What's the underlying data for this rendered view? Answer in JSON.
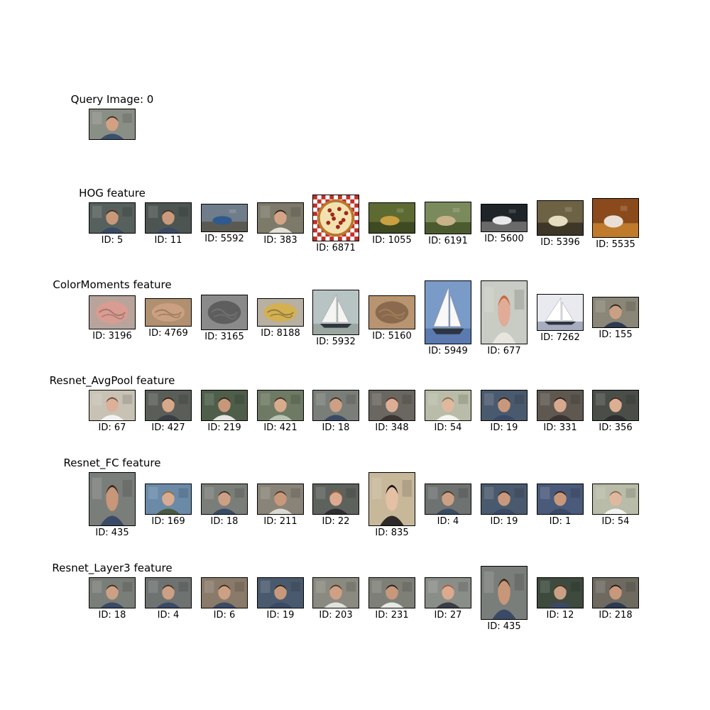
{
  "query": {
    "title": "Query Image: 0",
    "image": {
      "name": "query-face",
      "kind": "face",
      "bg": "#8a8f86",
      "skin": "#d2a184",
      "hair": "#3b2a1f",
      "shirt": "#3c4f6e"
    }
  },
  "features": [
    {
      "title": "HOG feature",
      "results": [
        {
          "caption": "ID: 5",
          "kind": "face",
          "bg": "#56605c",
          "skin": "#c8987a",
          "hair": "#3a2a20",
          "shirt": "#3a4a66"
        },
        {
          "caption": "ID: 11",
          "kind": "face",
          "bg": "#4d5552",
          "skin": "#c99a7b",
          "hair": "#3a2a20",
          "shirt": "#3a4a66"
        },
        {
          "caption": "ID: 5592",
          "kind": "scene",
          "bg": "#6f7c8a",
          "accent": "#2f5a8e",
          "ground": "#5a5a52"
        },
        {
          "caption": "ID: 383",
          "kind": "face",
          "bg": "#7d7a6a",
          "skin": "#d4a487",
          "hair": "#2a1e18",
          "shirt": "#e4e2d6"
        },
        {
          "caption": "ID: 6871",
          "kind": "pizza",
          "bg": "#c03028",
          "accent": "#a02818",
          "ground": "#f2e2b0"
        },
        {
          "caption": "ID: 1055",
          "kind": "scene",
          "bg": "#5d6a32",
          "accent": "#c9a040",
          "ground": "#3d4a22"
        },
        {
          "caption": "ID: 6191",
          "kind": "scene",
          "bg": "#7a8a5c",
          "accent": "#c8b28a",
          "ground": "#4c5a30"
        },
        {
          "caption": "ID: 5600",
          "kind": "scene",
          "bg": "#1f2428",
          "accent": "#e8e8ea",
          "ground": "#6a6a6a"
        },
        {
          "caption": "ID: 5396",
          "kind": "scene",
          "bg": "#6e6244",
          "accent": "#e6dcc0",
          "ground": "#3e3626"
        },
        {
          "caption": "ID: 5535",
          "kind": "scene",
          "bg": "#8a4a1c",
          "accent": "#e8e0d6",
          "ground": "#c07a2c"
        }
      ]
    },
    {
      "title": "ColorMoments feature",
      "results": [
        {
          "caption": "ID: 3196",
          "kind": "blob",
          "bg": "#b8a49a",
          "accent": "#d89c92",
          "ground": "#a87870"
        },
        {
          "caption": "ID: 4769",
          "kind": "blob",
          "bg": "#b09070",
          "accent": "#caa080",
          "ground": "#9a7a5e"
        },
        {
          "caption": "ID: 3165",
          "kind": "blob",
          "bg": "#8a8a8a",
          "accent": "#5e5e5e",
          "ground": "#707070"
        },
        {
          "caption": "ID: 8188",
          "kind": "blob",
          "bg": "#b8b0a0",
          "accent": "#d4b050",
          "ground": "#8a7a44"
        },
        {
          "caption": "ID: 5932",
          "kind": "boat",
          "bg": "#b8c4c4",
          "accent": "#f4f4f2",
          "ground": "#9aa6a0"
        },
        {
          "caption": "ID: 5160",
          "kind": "blob",
          "bg": "#b89470",
          "accent": "#8a6a4e",
          "ground": "#a07e5c"
        },
        {
          "caption": "ID: 5949",
          "kind": "boat",
          "bg": "#7a9ac8",
          "accent": "#f8f8f8",
          "ground": "#5a7ab0"
        },
        {
          "caption": "ID: 677",
          "kind": "face",
          "bg": "#c8ccc4",
          "skin": "#e0ac98",
          "hair": "#c86a40",
          "shirt": "#e8e4de"
        },
        {
          "caption": "ID: 7262",
          "kind": "boat",
          "bg": "#e8eaf0",
          "accent": "#ffffff",
          "ground": "#a8acc0"
        },
        {
          "caption": "ID: 155",
          "kind": "face",
          "bg": "#8a8678",
          "skin": "#caa084",
          "hair": "#2a201a",
          "shirt": "#2e3a52"
        }
      ]
    },
    {
      "title": "Resnet_AvgPool feature",
      "results": [
        {
          "caption": "ID: 67",
          "kind": "face",
          "bg": "#c8c2b4",
          "skin": "#dcb09a",
          "hair": "#6a4a32",
          "shirt": "#f2f2f0"
        },
        {
          "caption": "ID: 427",
          "kind": "face",
          "bg": "#5a5e58",
          "skin": "#d8a88a",
          "hair": "#2a1e18",
          "shirt": "#3a3e44"
        },
        {
          "caption": "ID: 219",
          "kind": "face",
          "bg": "#4e5e4a",
          "skin": "#c8967a",
          "hair": "#2a201a",
          "shirt": "#e6e6e2"
        },
        {
          "caption": "ID: 421",
          "kind": "face",
          "bg": "#6e7a64",
          "skin": "#d8ab8e",
          "hair": "#3a2a1e",
          "shirt": "#b8c4b0"
        },
        {
          "caption": "ID: 18",
          "kind": "face",
          "bg": "#7a7e78",
          "skin": "#cca084",
          "hair": "#3a2a20",
          "shirt": "#3a4a66"
        },
        {
          "caption": "ID: 348",
          "kind": "face",
          "bg": "#6a6660",
          "skin": "#dcae94",
          "hair": "#4a2e20",
          "shirt": "#3a3432"
        },
        {
          "caption": "ID: 54",
          "kind": "face",
          "bg": "#b8bca8",
          "skin": "#e0b8a0",
          "hair": "#8a6a4a",
          "shirt": "#f4f4f2"
        },
        {
          "caption": "ID: 19",
          "kind": "face",
          "bg": "#4a5a6e",
          "skin": "#c8987c",
          "hair": "#2a1e18",
          "shirt": "#3a4a66"
        },
        {
          "caption": "ID: 331",
          "kind": "face",
          "bg": "#5e5850",
          "skin": "#d8a88e",
          "hair": "#1e1612",
          "shirt": "#3a3432"
        },
        {
          "caption": "ID: 356",
          "kind": "face",
          "bg": "#4a4e48",
          "skin": "#dcae92",
          "hair": "#3a2418",
          "shirt": "#2e2e32"
        }
      ]
    },
    {
      "title": "Resnet_FC feature",
      "results": [
        {
          "caption": "ID: 435",
          "kind": "face",
          "bg": "#7a7e7a",
          "skin": "#c89678",
          "hair": "#3a2a20",
          "shirt": "#3a4a66"
        },
        {
          "caption": "ID: 169",
          "kind": "face",
          "bg": "#6a8aa8",
          "skin": "#d8aa90",
          "hair": "#8a6a3e",
          "shirt": "#4a5a3e"
        },
        {
          "caption": "ID: 18",
          "kind": "face",
          "bg": "#7a7e78",
          "skin": "#cca084",
          "hair": "#3a2a20",
          "shirt": "#3a4a66"
        },
        {
          "caption": "ID: 211",
          "kind": "face",
          "bg": "#8a8478",
          "skin": "#c8987a",
          "hair": "#4a3426",
          "shirt": "#dadad2"
        },
        {
          "caption": "ID: 22",
          "kind": "face",
          "bg": "#5e625c",
          "skin": "#dcaa90",
          "hair": "#9a5a34",
          "shirt": "#2e2e32"
        },
        {
          "caption": "ID: 835",
          "kind": "face",
          "bg": "#c8b89a",
          "skin": "#e6c0a4",
          "hair": "#141010",
          "shirt": "#2e2a2a"
        },
        {
          "caption": "ID: 4",
          "kind": "face",
          "bg": "#6e7270",
          "skin": "#cca084",
          "hair": "#3a2a20",
          "shirt": "#3a4a66"
        },
        {
          "caption": "ID: 19",
          "kind": "face",
          "bg": "#4a5a6e",
          "skin": "#c8987c",
          "hair": "#2a1e18",
          "shirt": "#3a4a66"
        },
        {
          "caption": "ID: 1",
          "kind": "face",
          "bg": "#4a5a7a",
          "skin": "#c8987c",
          "hair": "#2a1e18",
          "shirt": "#3a4a66"
        },
        {
          "caption": "ID: 54",
          "kind": "face",
          "bg": "#b8bca8",
          "skin": "#e0b8a0",
          "hair": "#8a6a4a",
          "shirt": "#f4f4f2"
        }
      ]
    },
    {
      "title": "Resnet_Layer3 feature",
      "results": [
        {
          "caption": "ID: 18",
          "kind": "face",
          "bg": "#7a7e78",
          "skin": "#cca084",
          "hair": "#3a2a20",
          "shirt": "#3a4a66"
        },
        {
          "caption": "ID: 4",
          "kind": "face",
          "bg": "#6e7270",
          "skin": "#cca084",
          "hair": "#3a2a20",
          "shirt": "#3a4a66"
        },
        {
          "caption": "ID: 6",
          "kind": "face",
          "bg": "#8a7a6a",
          "skin": "#cca084",
          "hair": "#3a2a20",
          "shirt": "#3a4a66"
        },
        {
          "caption": "ID: 19",
          "kind": "face",
          "bg": "#4a5a6e",
          "skin": "#c8987c",
          "hair": "#2a1e18",
          "shirt": "#3a4a66"
        },
        {
          "caption": "ID: 203",
          "kind": "face",
          "bg": "#8a8a80",
          "skin": "#d0a084",
          "hair": "#4a3426",
          "shirt": "#e2e2dc"
        },
        {
          "caption": "ID: 231",
          "kind": "face",
          "bg": "#7e8078",
          "skin": "#c8987c",
          "hair": "#1e1612",
          "shirt": "#e8e8e4"
        },
        {
          "caption": "ID: 27",
          "kind": "face",
          "bg": "#8a8e88",
          "skin": "#dcaa90",
          "hair": "#9a5a34",
          "shirt": "#3a3e44"
        },
        {
          "caption": "ID: 435",
          "kind": "face",
          "bg": "#7a7e7a",
          "skin": "#c89678",
          "hair": "#3a2a20",
          "shirt": "#3a4a66"
        },
        {
          "caption": "ID: 12",
          "kind": "face",
          "bg": "#3e4a3e",
          "skin": "#cca084",
          "hair": "#3a2a20",
          "shirt": "#3a4a66"
        },
        {
          "caption": "ID: 218",
          "kind": "face",
          "bg": "#6e6a60",
          "skin": "#c8987c",
          "hair": "#1e1612",
          "shirt": "#2e3a52"
        }
      ]
    }
  ]
}
